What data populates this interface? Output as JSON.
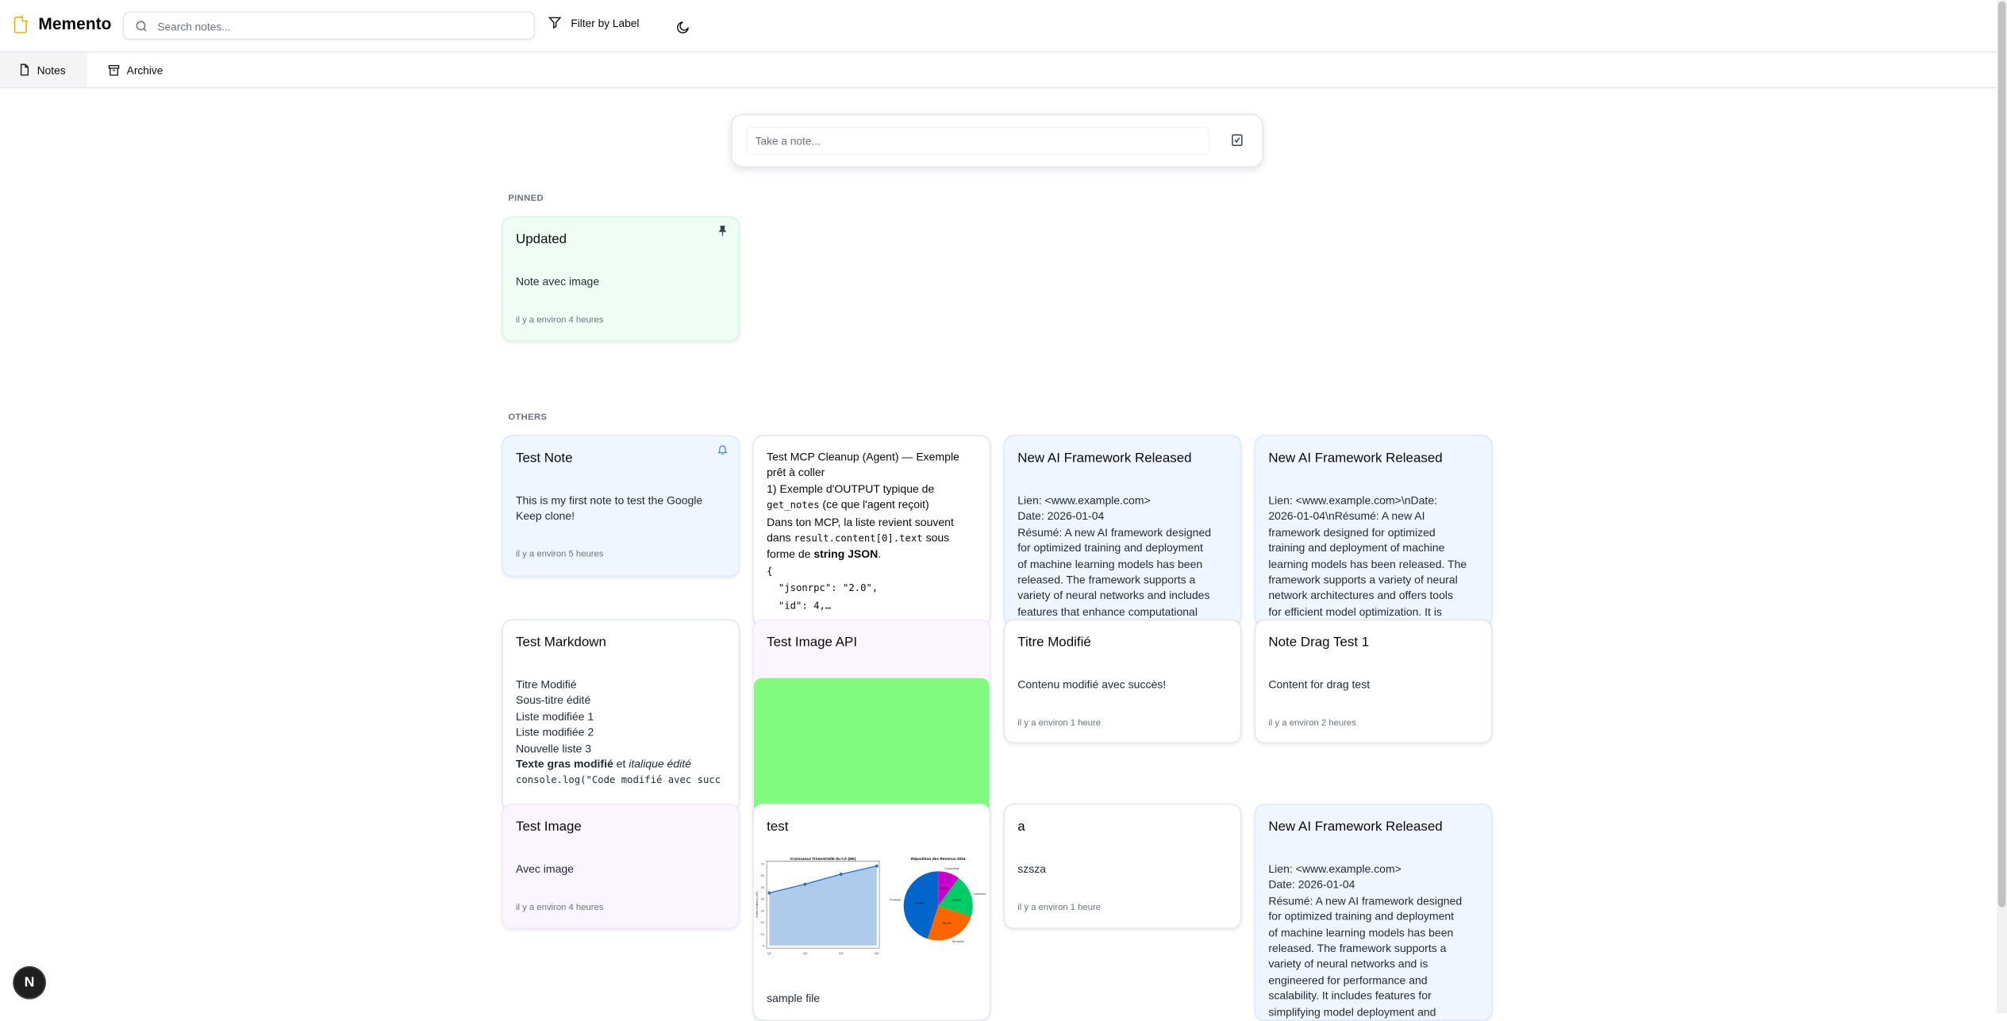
{
  "app": {
    "title": "Memento",
    "logo_icon": "note-icon",
    "logo_color": "#eab308"
  },
  "header": {
    "search_placeholder": "Search notes...",
    "search_value": "",
    "filter_label": "Filter by Label",
    "theme_icon": "moon-icon"
  },
  "tabs": [
    {
      "label": "Notes",
      "icon": "file-icon",
      "active": true
    },
    {
      "label": "Archive",
      "icon": "archive-icon",
      "active": false
    }
  ],
  "composer": {
    "placeholder": "Take a note...",
    "checklist_icon": "checkbox-icon"
  },
  "sections": {
    "pinned": "PINNED",
    "others": "OTHERS"
  },
  "colors": {
    "blue": "#eff6ff",
    "green": "#f0fdf4",
    "purple": "#faf5ff",
    "image_green": "#80fb80"
  },
  "pinned": [
    {
      "title": "Updated",
      "color": "green",
      "icon": "pin-icon",
      "lines": [
        [
          {
            "t": "Note avec image"
          }
        ]
      ],
      "time": "il y a environ 4 heures"
    }
  ],
  "others": [
    {
      "title": "Test Note",
      "color": "blue",
      "icon": "bell-icon",
      "lines": [
        [
          {
            "t": "This is my first note to test the Google Keep clone!"
          }
        ]
      ],
      "wrap": true,
      "time": "il y a environ 5 heures"
    },
    {
      "title": "",
      "color": "white",
      "lines": [
        [
          {
            "t": "Test MCP Cleanup (Agent) — Exemple"
          }
        ],
        [
          {
            "t": "prêt à coller"
          }
        ],
        [
          {
            "t": "1) Exemple d'OUTPUT typique de"
          }
        ],
        [
          {
            "t": "get_notes",
            "s": "mono"
          },
          {
            "t": " (ce que l'agent reçoit)"
          }
        ],
        [
          {
            "t": "Dans ton MCP, la liste revient souvent"
          }
        ],
        [
          {
            "t": "dans "
          },
          {
            "t": "result.content[0].text",
            "s": "mono"
          },
          {
            "t": " sous"
          }
        ],
        [
          {
            "t": "forme de "
          },
          {
            "t": "string JSON",
            "s": "bold"
          },
          {
            "t": "."
          }
        ],
        [
          {
            "t": "{",
            "s": "mono"
          }
        ],
        [
          {
            "t": "  \"jsonrpc\": \"2.0\",",
            "s": "mono pre"
          }
        ],
        [
          {
            "t": "  \"id\": 4,…",
            "s": "mono pre"
          }
        ]
      ]
    },
    {
      "title": "New AI Framework Released",
      "color": "blue",
      "lines": [
        [
          {
            "t": "Lien: <www.example.com>"
          }
        ],
        [
          {
            "t": "Date: 2026-01-04"
          }
        ],
        [
          {
            "t": "Résumé: A new AI framework designed"
          }
        ],
        [
          {
            "t": "for optimized training and deployment"
          }
        ],
        [
          {
            "t": "of machine learning models has been"
          }
        ],
        [
          {
            "t": "released. The framework supports a"
          }
        ],
        [
          {
            "t": "variety of neural networks and includes"
          }
        ],
        [
          {
            "t": "features that enhance computational"
          }
        ]
      ]
    },
    {
      "title": "New AI Framework Released",
      "color": "blue",
      "lines": [
        [
          {
            "t": "Lien: <www.example.com>\\nDate:"
          }
        ],
        [
          {
            "t": "2026-01-04\\nRésumé: A new AI"
          }
        ],
        [
          {
            "t": "framework designed for optimized"
          }
        ],
        [
          {
            "t": "training and deployment of machine"
          }
        ],
        [
          {
            "t": "learning models has been released. The"
          }
        ],
        [
          {
            "t": "framework supports a variety of neural"
          }
        ],
        [
          {
            "t": "network architectures and offers tools"
          }
        ],
        [
          {
            "t": "for efficient model optimization. It is"
          }
        ]
      ]
    },
    {
      "title": "Test Markdown",
      "color": "white",
      "lines": [
        [
          {
            "t": "Titre Modifié"
          }
        ],
        [
          {
            "t": "Sous-titre édité"
          }
        ],
        [
          {
            "t": "Liste modifiée 1"
          }
        ],
        [
          {
            "t": "Liste modifiée 2"
          }
        ],
        [
          {
            "t": "Nouvelle liste 3"
          }
        ],
        [
          {
            "t": "Texte gras modifié",
            "s": "bold"
          },
          {
            "t": " et "
          },
          {
            "t": "italique édité",
            "s": "ital"
          }
        ],
        [
          {
            "t": "console.log(\"Code modifié avec succ",
            "s": "mono"
          }
        ]
      ]
    },
    {
      "title": "Test Image API",
      "color": "purple",
      "image": "green"
    },
    {
      "title": "Titre Modifié",
      "color": "white",
      "lines": [
        [
          {
            "t": "Contenu modifié avec succès!"
          }
        ]
      ],
      "time": "il y a environ 1 heure"
    },
    {
      "title": "Note Drag Test 1",
      "color": "white",
      "lines": [
        [
          {
            "t": "Content for drag test"
          }
        ]
      ],
      "time": "il y a environ 2 heures"
    },
    {
      "title": "Test Image",
      "color": "purple",
      "lines": [
        [
          {
            "t": "Avec image"
          }
        ]
      ],
      "time": "il y a environ 4 heures"
    },
    {
      "title": "test",
      "color": "white",
      "image": "charts",
      "lines": [
        [
          {
            "t": "sample file"
          }
        ]
      ]
    },
    {
      "title": "a",
      "color": "white",
      "lines": [
        [
          {
            "t": "szsza"
          }
        ]
      ],
      "time": "il y a environ 1 heure"
    },
    {
      "title": "New AI Framework Released",
      "color": "blue",
      "lines": [
        [
          {
            "t": "Lien: <www.example.com>"
          }
        ],
        [
          {
            "t": "Date: 2026-01-04"
          }
        ],
        [
          {
            "t": "Résumé: A new AI framework designed"
          }
        ],
        [
          {
            "t": "for optimized training and deployment"
          }
        ],
        [
          {
            "t": "of machine learning models has been"
          }
        ],
        [
          {
            "t": "released. The framework supports a"
          }
        ],
        [
          {
            "t": "variety of neural networks and is"
          }
        ],
        [
          {
            "t": "engineered for performance and"
          }
        ],
        [
          {
            "t": "scalability. It includes features for"
          }
        ],
        [
          {
            "t": "simplifying model deployment and"
          }
        ]
      ]
    }
  ],
  "embedded_image": {
    "line_title": "Croissance Trimestrielle du CA (M€)",
    "line_ylabel": "Chiffre d'affaires (M€)",
    "quarters": [
      "Q1",
      "Q2",
      "Q3",
      "Q4"
    ],
    "values": [
      45,
      52.5,
      61,
      68
    ],
    "yticks": [
      "0",
      "10",
      "20",
      "30",
      "40",
      "50",
      "60",
      "70"
    ],
    "pie_title": "Répartition des Revenus 2024",
    "pie": [
      {
        "label": "Produits",
        "pct": "45.0%",
        "value": 45,
        "color": "#0066cc"
      },
      {
        "label": "Services",
        "pct": "25.0%",
        "value": 25,
        "color": "#ff6600"
      },
      {
        "label": "Licences",
        "pct": "20.0%",
        "value": 20,
        "color": "#00cc66"
      },
      {
        "label": "Consulting",
        "pct": "10.0%",
        "value": 10,
        "color": "#cc00cc"
      }
    ]
  },
  "dev_badge": "N"
}
